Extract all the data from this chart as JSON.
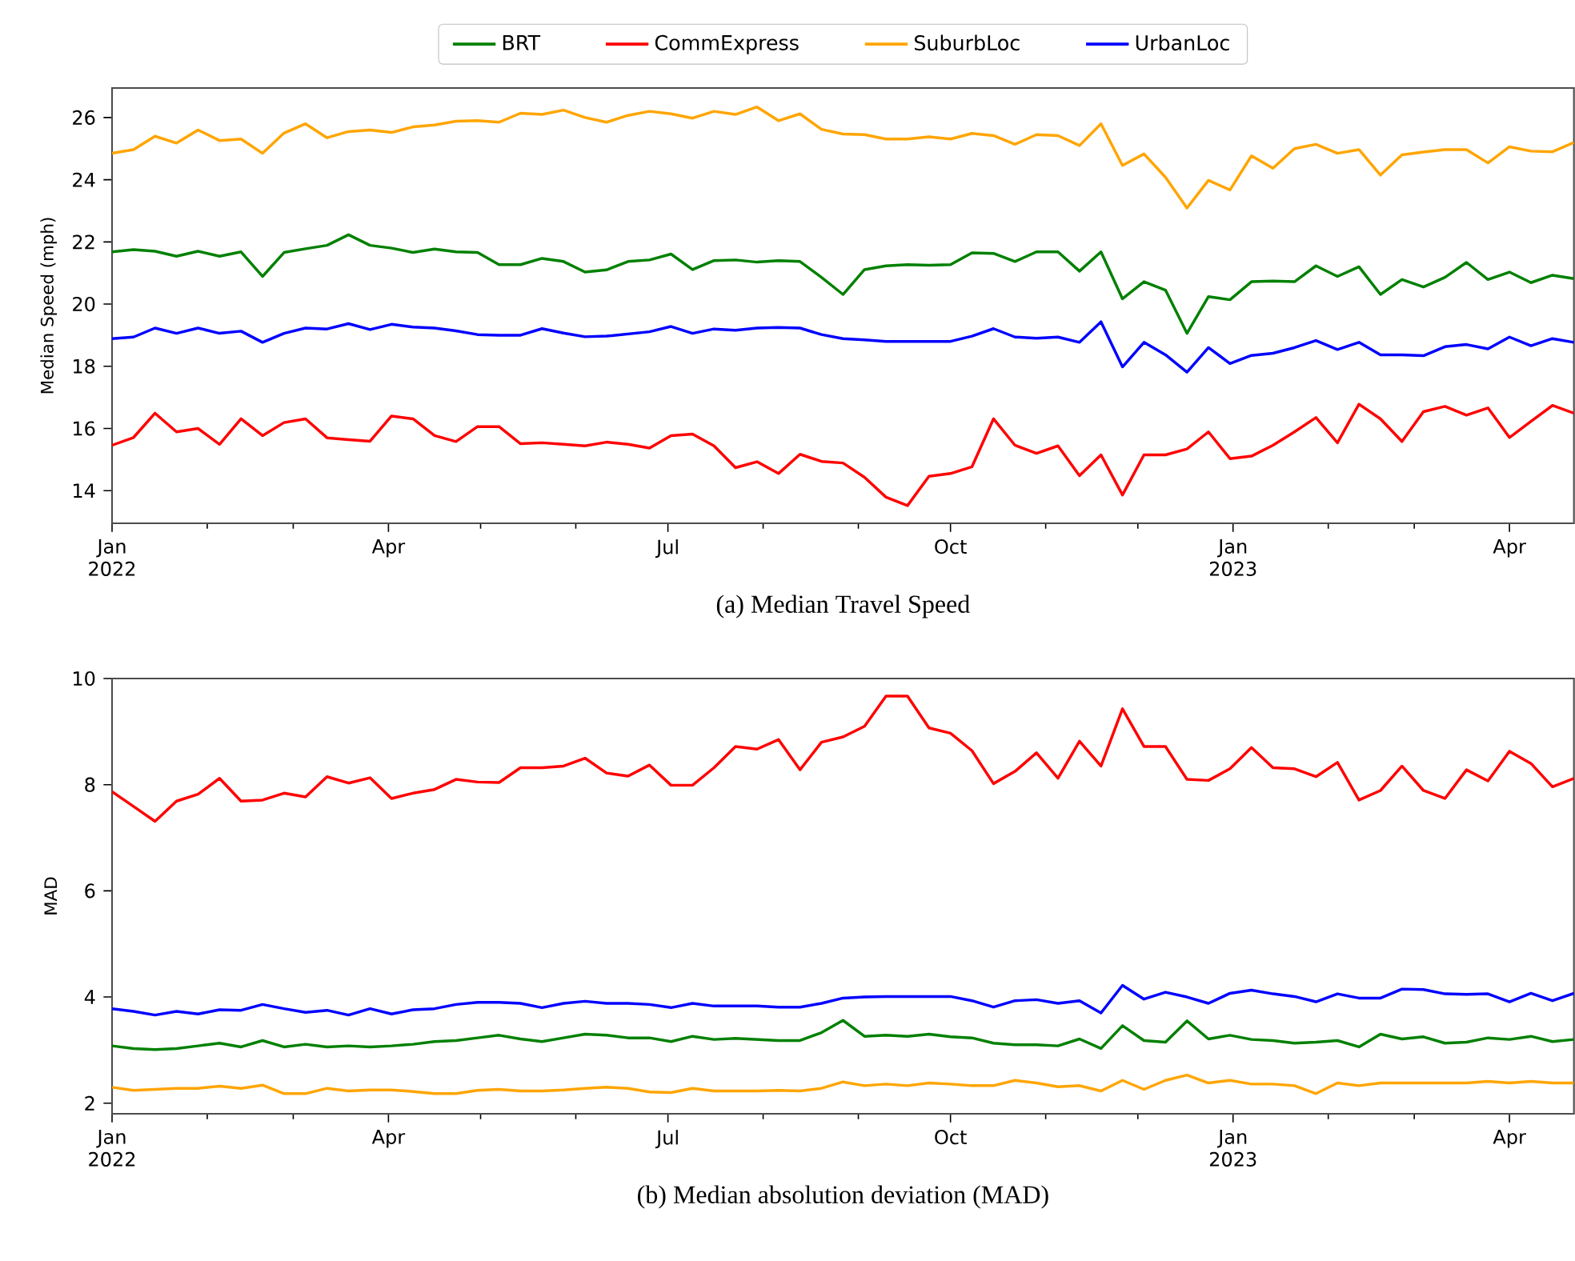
{
  "chart_data": [
    {
      "type": "line",
      "title": "(a) Median Travel Speed",
      "ylabel": "Median Speed (mph)",
      "legend": "top",
      "x": [
        "2022-01-01",
        "2022-01-08",
        "2022-01-15",
        "2022-01-22",
        "2022-01-29",
        "2022-02-05",
        "2022-02-12",
        "2022-02-19",
        "2022-02-26",
        "2022-03-05",
        "2022-03-12",
        "2022-03-19",
        "2022-03-26",
        "2022-04-02",
        "2022-04-09",
        "2022-04-16",
        "2022-04-23",
        "2022-04-30",
        "2022-05-07",
        "2022-05-14",
        "2022-05-21",
        "2022-05-28",
        "2022-06-04",
        "2022-06-11",
        "2022-06-18",
        "2022-06-25",
        "2022-07-02",
        "2022-07-09",
        "2022-07-16",
        "2022-07-23",
        "2022-07-30",
        "2022-08-06",
        "2022-08-13",
        "2022-08-20",
        "2022-08-27",
        "2022-09-03",
        "2022-09-10",
        "2022-09-17",
        "2022-09-24",
        "2022-10-01",
        "2022-10-08",
        "2022-10-15",
        "2022-10-22",
        "2022-10-29",
        "2022-11-05",
        "2022-11-12",
        "2022-11-19",
        "2022-11-26",
        "2022-12-03",
        "2022-12-10",
        "2022-12-17",
        "2022-12-24",
        "2022-12-31",
        "2023-01-07",
        "2023-01-14",
        "2023-01-21",
        "2023-01-28",
        "2023-02-04",
        "2023-02-11",
        "2023-02-18",
        "2023-02-25",
        "2023-03-04",
        "2023-03-11",
        "2023-03-18",
        "2023-03-25",
        "2023-04-01",
        "2023-04-08",
        "2023-04-15",
        "2023-04-22"
      ],
      "xlim": [
        "2022-01-01",
        "2023-04-22"
      ],
      "xticks": [
        {
          "value": "2022-01-01",
          "label": "Jan 2022"
        },
        {
          "value": "2022-02-01",
          "label": null
        },
        {
          "value": "2022-03-01",
          "label": null
        },
        {
          "value": "2022-04-01",
          "label": "Apr"
        },
        {
          "value": "2022-05-01",
          "label": null
        },
        {
          "value": "2022-06-01",
          "label": null
        },
        {
          "value": "2022-07-01",
          "label": "Jul"
        },
        {
          "value": "2022-08-01",
          "label": null
        },
        {
          "value": "2022-09-01",
          "label": null
        },
        {
          "value": "2022-10-01",
          "label": "Oct"
        },
        {
          "value": "2022-11-01",
          "label": null
        },
        {
          "value": "2022-12-01",
          "label": null
        },
        {
          "value": "2023-01-01",
          "label": "Jan 2023"
        },
        {
          "value": "2023-02-01",
          "label": null
        },
        {
          "value": "2023-03-01",
          "label": null
        },
        {
          "value": "2023-04-01",
          "label": "Apr"
        }
      ],
      "ylim": [
        12.95,
        26.95
      ],
      "yticks": [
        14,
        16,
        18,
        20,
        22,
        24,
        26
      ],
      "series": [
        {
          "name": "BRT",
          "color": "#008000",
          "values": [
            21.68,
            21.75,
            21.7,
            21.54,
            21.7,
            21.54,
            21.68,
            20.89,
            21.66,
            21.78,
            21.89,
            22.23,
            21.89,
            21.8,
            21.66,
            21.77,
            21.68,
            21.66,
            21.27,
            21.27,
            21.47,
            21.37,
            21.03,
            21.1,
            21.37,
            21.42,
            21.61,
            21.11,
            21.4,
            21.42,
            21.35,
            21.4,
            21.37,
            20.86,
            20.31,
            21.11,
            21.23,
            21.27,
            21.25,
            21.27,
            21.65,
            21.63,
            21.37,
            21.68,
            21.68,
            21.06,
            21.68,
            20.17,
            20.72,
            20.45,
            19.06,
            20.24,
            20.14,
            20.72,
            20.74,
            20.72,
            21.23,
            20.89,
            21.2,
            20.31,
            20.79,
            20.55,
            20.86,
            21.34,
            20.79,
            21.03,
            20.69,
            20.93,
            20.82
          ]
        },
        {
          "name": "CommExpress",
          "color": "#ff0000",
          "values": [
            15.46,
            15.71,
            16.49,
            15.89,
            16.0,
            15.49,
            16.31,
            15.77,
            16.19,
            16.31,
            15.7,
            15.64,
            15.59,
            16.4,
            16.31,
            15.77,
            15.58,
            16.06,
            16.06,
            15.51,
            15.54,
            15.49,
            15.44,
            15.56,
            15.49,
            15.37,
            15.77,
            15.82,
            15.44,
            14.74,
            14.93,
            14.55,
            15.17,
            14.94,
            14.89,
            14.43,
            13.79,
            13.52,
            14.46,
            14.55,
            14.77,
            16.31,
            15.46,
            15.2,
            15.44,
            14.48,
            15.15,
            13.86,
            15.15,
            15.15,
            15.34,
            15.89,
            15.03,
            15.11,
            15.46,
            15.89,
            16.35,
            15.54,
            16.78,
            16.31,
            15.58,
            16.54,
            16.71,
            16.43,
            16.66,
            15.71,
            16.23,
            16.74,
            16.49
          ]
        },
        {
          "name": "SuburbLoc",
          "color": "#ffa500",
          "values": [
            24.85,
            24.97,
            25.4,
            25.18,
            25.6,
            25.26,
            25.31,
            24.85,
            25.5,
            25.8,
            25.35,
            25.55,
            25.6,
            25.52,
            25.7,
            25.76,
            25.88,
            25.9,
            25.85,
            26.14,
            26.1,
            26.24,
            26.0,
            25.85,
            26.07,
            26.2,
            26.12,
            25.98,
            26.2,
            26.1,
            26.34,
            25.9,
            26.12,
            25.62,
            25.47,
            25.45,
            25.31,
            25.31,
            25.38,
            25.31,
            25.49,
            25.42,
            25.14,
            25.45,
            25.42,
            25.1,
            25.8,
            24.46,
            24.83,
            24.08,
            23.09,
            23.98,
            23.67,
            24.77,
            24.37,
            25.0,
            25.14,
            24.85,
            24.97,
            24.15,
            24.8,
            24.89,
            24.97,
            24.97,
            24.54,
            25.06,
            24.92,
            24.9,
            25.2
          ]
        },
        {
          "name": "UrbanLoc",
          "color": "#0000ff",
          "values": [
            18.89,
            18.94,
            19.23,
            19.06,
            19.23,
            19.06,
            19.13,
            18.77,
            19.06,
            19.23,
            19.2,
            19.37,
            19.18,
            19.35,
            19.26,
            19.23,
            19.14,
            19.02,
            19.0,
            19.0,
            19.21,
            19.07,
            18.95,
            18.97,
            19.04,
            19.11,
            19.28,
            19.06,
            19.2,
            19.16,
            19.23,
            19.25,
            19.23,
            19.02,
            18.89,
            18.85,
            18.8,
            18.8,
            18.8,
            18.8,
            18.97,
            19.21,
            18.94,
            18.9,
            18.94,
            18.77,
            19.43,
            17.98,
            18.77,
            18.37,
            17.81,
            18.6,
            18.09,
            18.35,
            18.42,
            18.6,
            18.83,
            18.54,
            18.77,
            18.37,
            18.37,
            18.34,
            18.63,
            18.7,
            18.56,
            18.94,
            18.66,
            18.89,
            18.77
          ]
        }
      ]
    },
    {
      "type": "line",
      "title": "(b) Median absolution deviation (MAD)",
      "ylabel": "MAD",
      "x": [
        "2022-01-01",
        "2022-01-08",
        "2022-01-15",
        "2022-01-22",
        "2022-01-29",
        "2022-02-05",
        "2022-02-12",
        "2022-02-19",
        "2022-02-26",
        "2022-03-05",
        "2022-03-12",
        "2022-03-19",
        "2022-03-26",
        "2022-04-02",
        "2022-04-09",
        "2022-04-16",
        "2022-04-23",
        "2022-04-30",
        "2022-05-07",
        "2022-05-14",
        "2022-05-21",
        "2022-05-28",
        "2022-06-04",
        "2022-06-11",
        "2022-06-18",
        "2022-06-25",
        "2022-07-02",
        "2022-07-09",
        "2022-07-16",
        "2022-07-23",
        "2022-07-30",
        "2022-08-06",
        "2022-08-13",
        "2022-08-20",
        "2022-08-27",
        "2022-09-03",
        "2022-09-10",
        "2022-09-17",
        "2022-09-24",
        "2022-10-01",
        "2022-10-08",
        "2022-10-15",
        "2022-10-22",
        "2022-10-29",
        "2022-11-05",
        "2022-11-12",
        "2022-11-19",
        "2022-11-26",
        "2022-12-03",
        "2022-12-10",
        "2022-12-17",
        "2022-12-24",
        "2022-12-31",
        "2023-01-07",
        "2023-01-14",
        "2023-01-21",
        "2023-01-28",
        "2023-02-04",
        "2023-02-11",
        "2023-02-18",
        "2023-02-25",
        "2023-03-04",
        "2023-03-11",
        "2023-03-18",
        "2023-03-25",
        "2023-04-01",
        "2023-04-08",
        "2023-04-15",
        "2023-04-22"
      ],
      "xlim": [
        "2022-01-01",
        "2023-04-22"
      ],
      "xticks": [
        {
          "value": "2022-01-01",
          "label": "Jan 2022"
        },
        {
          "value": "2022-02-01",
          "label": null
        },
        {
          "value": "2022-03-01",
          "label": null
        },
        {
          "value": "2022-04-01",
          "label": "Apr"
        },
        {
          "value": "2022-05-01",
          "label": null
        },
        {
          "value": "2022-06-01",
          "label": null
        },
        {
          "value": "2022-07-01",
          "label": "Jul"
        },
        {
          "value": "2022-08-01",
          "label": null
        },
        {
          "value": "2022-09-01",
          "label": null
        },
        {
          "value": "2022-10-01",
          "label": "Oct"
        },
        {
          "value": "2022-11-01",
          "label": null
        },
        {
          "value": "2022-12-01",
          "label": null
        },
        {
          "value": "2023-01-01",
          "label": "Jan 2023"
        },
        {
          "value": "2023-02-01",
          "label": null
        },
        {
          "value": "2023-03-01",
          "label": null
        },
        {
          "value": "2023-04-01",
          "label": "Apr"
        }
      ],
      "ylim": [
        1.8,
        10
      ],
      "yticks": [
        2,
        4,
        6,
        8,
        10
      ],
      "series": [
        {
          "color": "#008000",
          "values": [
            3.08,
            3.03,
            3.01,
            3.03,
            3.08,
            3.13,
            3.06,
            3.18,
            3.06,
            3.11,
            3.06,
            3.08,
            3.06,
            3.08,
            3.11,
            3.16,
            3.18,
            3.23,
            3.28,
            3.21,
            3.16,
            3.23,
            3.3,
            3.28,
            3.23,
            3.23,
            3.16,
            3.26,
            3.2,
            3.22,
            3.2,
            3.18,
            3.18,
            3.33,
            3.56,
            3.26,
            3.28,
            3.26,
            3.3,
            3.25,
            3.23,
            3.13,
            3.1,
            3.1,
            3.08,
            3.21,
            3.03,
            3.46,
            3.18,
            3.15,
            3.55,
            3.21,
            3.28,
            3.2,
            3.18,
            3.13,
            3.15,
            3.18,
            3.06,
            3.3,
            3.21,
            3.25,
            3.13,
            3.15,
            3.23,
            3.2,
            3.26,
            3.16,
            3.2
          ]
        },
        {
          "color": "#ff0000",
          "values": [
            7.87,
            7.59,
            7.31,
            7.69,
            7.82,
            8.12,
            7.69,
            7.71,
            7.84,
            7.77,
            8.15,
            8.03,
            8.13,
            7.74,
            7.84,
            7.91,
            8.1,
            8.05,
            8.04,
            8.32,
            8.32,
            8.35,
            8.5,
            8.22,
            8.16,
            8.37,
            7.99,
            7.99,
            8.32,
            8.72,
            8.67,
            8.85,
            8.28,
            8.8,
            8.9,
            9.1,
            9.67,
            9.67,
            9.07,
            8.97,
            8.64,
            8.02,
            8.25,
            8.6,
            8.12,
            8.82,
            8.35,
            9.43,
            8.72,
            8.72,
            8.1,
            8.08,
            8.3,
            8.7,
            8.32,
            8.3,
            8.15,
            8.42,
            7.71,
            7.89,
            8.35,
            7.89,
            7.74,
            8.28,
            8.07,
            8.63,
            8.4,
            7.96,
            8.12
          ]
        },
        {
          "color": "#ffa500",
          "values": [
            2.3,
            2.24,
            2.26,
            2.28,
            2.28,
            2.32,
            2.28,
            2.34,
            2.18,
            2.18,
            2.28,
            2.23,
            2.25,
            2.25,
            2.22,
            2.18,
            2.18,
            2.24,
            2.26,
            2.23,
            2.23,
            2.25,
            2.28,
            2.3,
            2.28,
            2.21,
            2.2,
            2.28,
            2.23,
            2.23,
            2.23,
            2.24,
            2.23,
            2.28,
            2.4,
            2.33,
            2.36,
            2.33,
            2.38,
            2.36,
            2.33,
            2.33,
            2.43,
            2.38,
            2.31,
            2.33,
            2.23,
            2.43,
            2.26,
            2.43,
            2.53,
            2.38,
            2.43,
            2.36,
            2.36,
            2.33,
            2.18,
            2.38,
            2.33,
            2.38,
            2.38,
            2.38,
            2.38,
            2.38,
            2.41,
            2.38,
            2.41,
            2.38,
            2.38
          ]
        },
        {
          "color": "#0000ff",
          "values": [
            3.78,
            3.73,
            3.66,
            3.73,
            3.68,
            3.76,
            3.75,
            3.86,
            3.78,
            3.71,
            3.75,
            3.66,
            3.78,
            3.68,
            3.76,
            3.78,
            3.86,
            3.9,
            3.9,
            3.88,
            3.8,
            3.88,
            3.92,
            3.88,
            3.88,
            3.86,
            3.8,
            3.88,
            3.83,
            3.83,
            3.83,
            3.81,
            3.81,
            3.88,
            3.98,
            4.0,
            4.01,
            4.01,
            4.01,
            4.01,
            3.93,
            3.81,
            3.93,
            3.95,
            3.88,
            3.93,
            3.7,
            4.22,
            3.96,
            4.09,
            4.0,
            3.88,
            4.07,
            4.13,
            4.06,
            4.01,
            3.91,
            4.06,
            3.98,
            3.98,
            4.15,
            4.14,
            4.06,
            4.05,
            4.06,
            3.91,
            4.07,
            3.93,
            4.07
          ]
        }
      ]
    }
  ]
}
